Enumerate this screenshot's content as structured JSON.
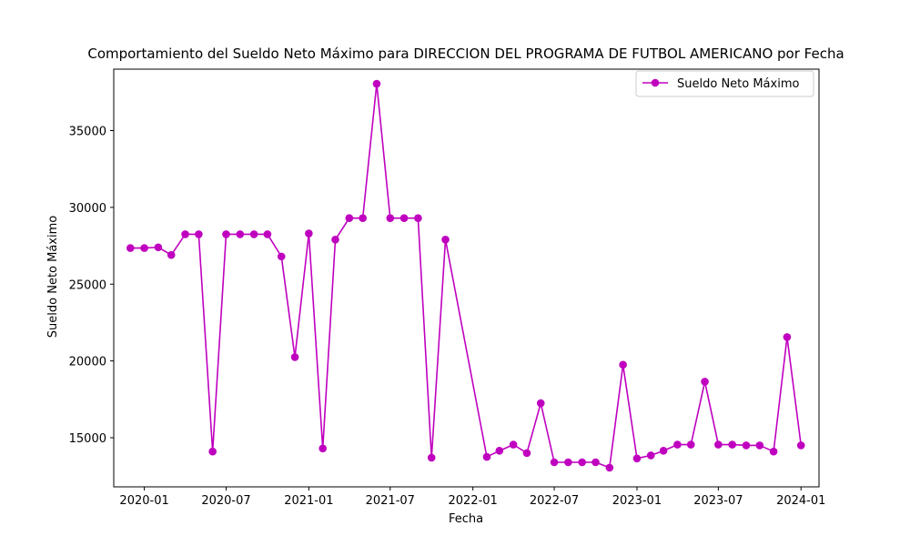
{
  "chart_data": {
    "type": "line",
    "title": "Comportamiento del Sueldo Neto Máximo para DIRECCION DEL PROGRAMA DE FUTBOL AMERICANO por Fecha",
    "xlabel": "Fecha",
    "ylabel": "Sueldo Neto Máximo",
    "x_tick_labels": [
      "2020-01",
      "2020-07",
      "2021-01",
      "2021-07",
      "2022-01",
      "2022-07",
      "2023-01",
      "2023-07",
      "2024-01"
    ],
    "y_tick_values": [
      15000,
      20000,
      25000,
      30000,
      35000
    ],
    "x_range": [
      "2019-10-25",
      "2024-02-10"
    ],
    "ylim": [
      11800,
      39000
    ],
    "grid": false,
    "legend_position": "top-right",
    "series": [
      {
        "name": "Sueldo Neto Máximo",
        "color": "#bf00bf",
        "marker": "circle",
        "x": [
          "2019-12-01",
          "2020-01-01",
          "2020-02-01",
          "2020-03-01",
          "2020-04-01",
          "2020-05-01",
          "2020-06-01",
          "2020-07-01",
          "2020-08-01",
          "2020-09-01",
          "2020-10-01",
          "2020-11-01",
          "2020-12-01",
          "2021-01-01",
          "2021-02-01",
          "2021-03-01",
          "2021-04-01",
          "2021-05-01",
          "2021-06-01",
          "2021-07-01",
          "2021-08-01",
          "2021-09-01",
          "2021-10-01",
          "2021-11-01",
          "2022-02-01",
          "2022-03-01",
          "2022-04-01",
          "2022-05-01",
          "2022-06-01",
          "2022-07-01",
          "2022-08-01",
          "2022-09-01",
          "2022-10-01",
          "2022-11-01",
          "2022-12-01",
          "2023-01-01",
          "2023-02-01",
          "2023-03-01",
          "2023-04-01",
          "2023-05-01",
          "2023-06-01",
          "2023-07-01",
          "2023-08-01",
          "2023-09-01",
          "2023-10-01",
          "2023-11-01",
          "2023-12-01",
          "2024-01-01"
        ],
        "y": [
          27350,
          27350,
          27400,
          26900,
          28250,
          28250,
          14100,
          28250,
          28250,
          28250,
          28250,
          26800,
          20250,
          28300,
          14300,
          27900,
          29300,
          29300,
          38050,
          29300,
          29300,
          29300,
          13700,
          27900,
          13750,
          14150,
          14550,
          14000,
          17250,
          13400,
          13400,
          13400,
          13400,
          13050,
          19750,
          13650,
          13850,
          14150,
          14550,
          14550,
          18650,
          14550,
          14550,
          14500,
          14500,
          14100,
          21550,
          14500
        ]
      }
    ]
  }
}
